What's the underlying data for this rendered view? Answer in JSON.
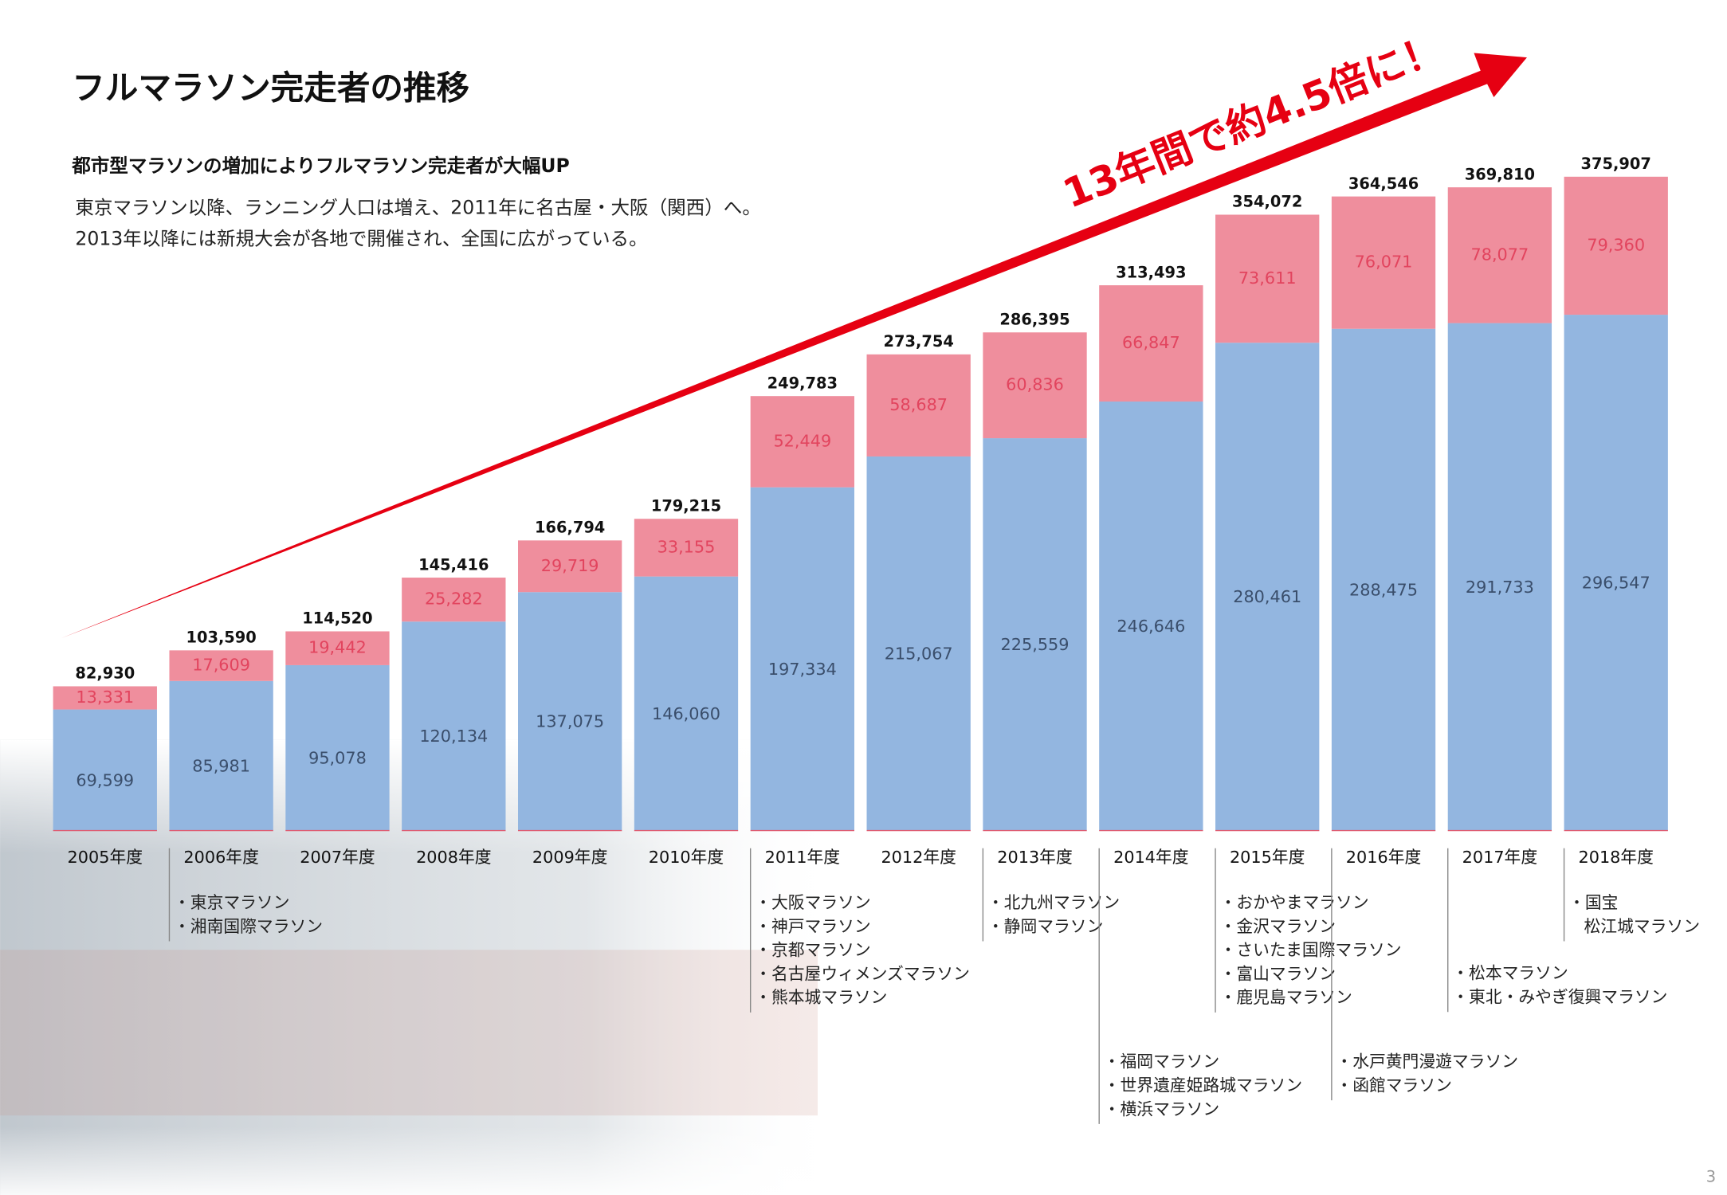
{
  "chart_data": {
    "type": "bar",
    "stacked": true,
    "title": "フルマラソン完走者の推移",
    "subtitle": "都市型マラソンの増加によりフルマラソン完走者が大幅UP",
    "description": [
      "東京マラソン以降、ランニング人口は増え、2011年に名古屋・大阪（関西）へ。",
      "2013年以降には新規大会が各地で開催され、全国に広がっている。"
    ],
    "arrow_label": "13年間で約4.5倍に！",
    "categories": [
      "2005年度",
      "2006年度",
      "2007年度",
      "2008年度",
      "2009年度",
      "2010年度",
      "2011年度",
      "2012年度",
      "2013年度",
      "2014年度",
      "2015年度",
      "2016年度",
      "2017年度",
      "2018年度"
    ],
    "series": [
      {
        "color": "#93b6e0",
        "label_color": "#3a4e6b",
        "values": [
          69599,
          85981,
          95078,
          120134,
          137075,
          146060,
          197334,
          215067,
          225559,
          246646,
          280461,
          288475,
          291733,
          296547
        ],
        "value_labels": [
          "69,599",
          "85,981",
          "95,078",
          "120,134",
          "137,075",
          "146,060",
          "197,334",
          "215,067",
          "225,559",
          "246,646",
          "280,461",
          "288,475",
          "291,733",
          "296,547"
        ]
      },
      {
        "color": "#ef8e9d",
        "label_color": "#e2445e",
        "values": [
          13331,
          17609,
          19442,
          25282,
          29719,
          33155,
          52449,
          58687,
          60836,
          66847,
          73611,
          76071,
          78077,
          79360
        ],
        "value_labels": [
          "13,331",
          "17,609",
          "19,442",
          "25,282",
          "29,719",
          "33,155",
          "52,449",
          "58,687",
          "60,836",
          "66,847",
          "73,611",
          "76,071",
          "78,077",
          "79,360"
        ]
      }
    ],
    "totals": [
      82930,
      103590,
      114520,
      145416,
      166794,
      179215,
      249783,
      273754,
      286395,
      313493,
      354072,
      364546,
      369810,
      375907
    ],
    "total_labels": [
      "82,930",
      "103,590",
      "114,520",
      "145,416",
      "166,794",
      "179,215",
      "249,783",
      "273,754",
      "286,395",
      "313,493",
      "354,072",
      "364,546",
      "369,810",
      "375,907"
    ],
    "annotations": [
      [],
      [
        "・東京マラソン",
        "・湘南国際マラソン"
      ],
      [],
      [],
      [],
      [],
      [
        "・大阪マラソン",
        "・神戸マラソン",
        "・京都マラソン",
        "・名古屋ウィメンズマラソン",
        "・熊本城マラソン"
      ],
      [],
      [
        "・北九州マラソン",
        "・静岡マラソン"
      ],
      [
        "・福岡マラソン",
        "・世界遺産姫路城マラソン",
        "・横浜マラソン"
      ],
      [
        "・おかやまマラソン",
        "・金沢マラソン",
        "・さいたま国際マラソン",
        "・富山マラソン",
        "・鹿児島マラソン"
      ],
      [
        "・水戸黄門漫遊マラソン",
        "・函館マラソン"
      ],
      [
        "・松本マラソン",
        "・東北・みやぎ復興マラソン"
      ],
      [
        "・国宝",
        "松江城マラソン"
      ]
    ]
  },
  "page_number": "3"
}
